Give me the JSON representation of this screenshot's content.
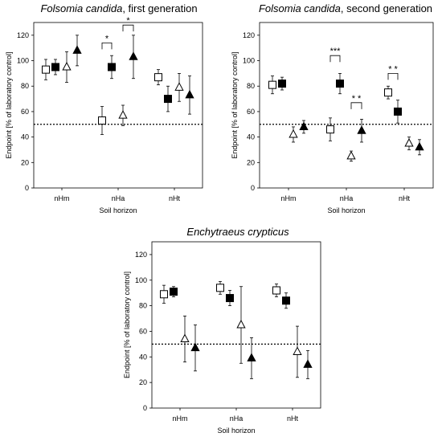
{
  "figure_caption": "",
  "marker_styles": [
    {
      "shape": "square",
      "fill": "open",
      "color": "#000000"
    },
    {
      "shape": "square",
      "fill": "filled",
      "color": "#000000"
    },
    {
      "shape": "triangle",
      "fill": "open",
      "color": "#000000"
    },
    {
      "shape": "triangle",
      "fill": "filled",
      "color": "#000000"
    }
  ],
  "chart_data": [
    {
      "type": "scatter",
      "title_italic": "Folsomia candida",
      "title_rest": ", first generation",
      "xlabel": "Soil horizon",
      "ylabel": "Endpoint [% of laboratory control]",
      "ylim": [
        0,
        130
      ],
      "yticks": [
        0,
        20,
        40,
        60,
        80,
        100,
        120
      ],
      "categories": [
        "nHm",
        "nHa",
        "nHt"
      ],
      "reference_line": 50,
      "series": [
        {
          "marker": 0,
          "values": [
            93,
            53,
            87
          ],
          "errors": [
            8,
            11,
            6
          ]
        },
        {
          "marker": 1,
          "values": [
            95,
            95,
            70
          ],
          "errors": [
            6,
            9,
            10
          ]
        },
        {
          "marker": 2,
          "values": [
            95,
            57,
            79
          ],
          "errors": [
            12,
            8,
            11
          ]
        },
        {
          "marker": 3,
          "values": [
            108,
            103,
            73
          ],
          "errors": [
            12,
            17,
            15
          ]
        }
      ],
      "significance": [
        {
          "label": "*",
          "category": 1,
          "from_series": 0,
          "to_series": 1,
          "y": 114
        },
        {
          "label": "*",
          "category": 1,
          "from_series": 2,
          "to_series": 3,
          "y": 128
        }
      ]
    },
    {
      "type": "scatter",
      "title_italic": "Folsomia candida",
      "title_rest": ", second generation",
      "xlabel": "Soil horizon",
      "ylabel": "Endpoint [% of laboratory control]",
      "ylim": [
        0,
        130
      ],
      "yticks": [
        0,
        20,
        40,
        60,
        80,
        100,
        120
      ],
      "categories": [
        "nHm",
        "nHa",
        "nHt"
      ],
      "reference_line": 50,
      "series": [
        {
          "marker": 0,
          "values": [
            81,
            46,
            75
          ],
          "errors": [
            7,
            9,
            5
          ]
        },
        {
          "marker": 1,
          "values": [
            82,
            82,
            60
          ],
          "errors": [
            5,
            8,
            9
          ]
        },
        {
          "marker": 2,
          "values": [
            42,
            25,
            35
          ],
          "errors": [
            6,
            4,
            5
          ]
        },
        {
          "marker": 3,
          "values": [
            48,
            45,
            32
          ],
          "errors": [
            5,
            9,
            6
          ]
        }
      ],
      "significance": [
        {
          "label": "***",
          "category": 1,
          "from_series": 0,
          "to_series": 1,
          "y": 104
        },
        {
          "label": "* *",
          "category": 1,
          "from_series": 2,
          "to_series": 3,
          "y": 67
        },
        {
          "label": "* *",
          "category": 2,
          "from_series": 0,
          "to_series": 1,
          "y": 90
        }
      ]
    },
    {
      "type": "scatter",
      "title_italic": "Enchytraeus  crypticus",
      "title_rest": "",
      "xlabel": "Soil horizon",
      "ylabel": "Endpoint [% of laboratory control]",
      "ylim": [
        0,
        130
      ],
      "yticks": [
        0,
        20,
        40,
        60,
        80,
        100,
        120
      ],
      "categories": [
        "nHm",
        "nHa",
        "nHt"
      ],
      "reference_line": 50,
      "series": [
        {
          "marker": 0,
          "values": [
            89,
            94,
            92
          ],
          "errors": [
            7,
            5,
            5
          ]
        },
        {
          "marker": 1,
          "values": [
            91,
            86,
            84
          ],
          "errors": [
            4,
            6,
            6
          ]
        },
        {
          "marker": 2,
          "values": [
            54,
            65,
            44
          ],
          "errors": [
            18,
            30,
            20
          ]
        },
        {
          "marker": 3,
          "values": [
            47,
            39,
            34
          ],
          "errors": [
            18,
            16,
            11
          ]
        }
      ],
      "significance": []
    }
  ]
}
